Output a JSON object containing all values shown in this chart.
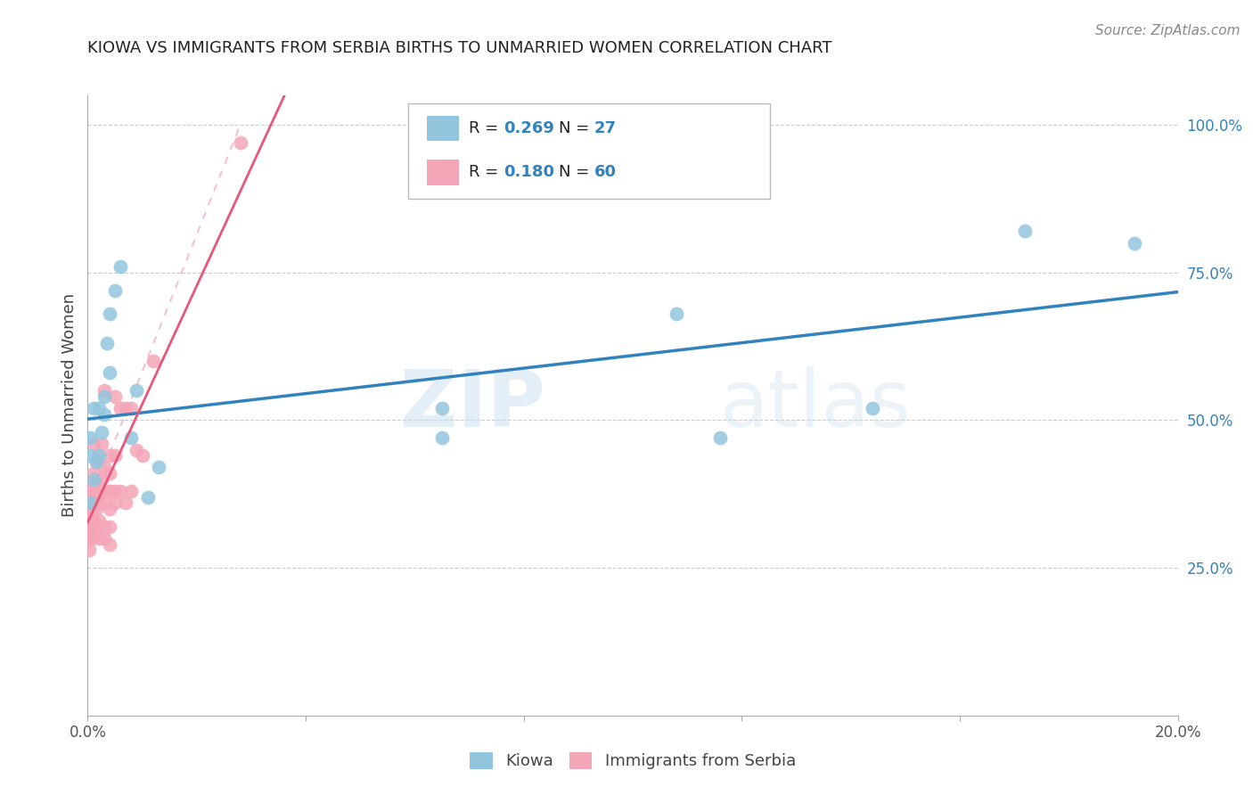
{
  "title": "KIOWA VS IMMIGRANTS FROM SERBIA BIRTHS TO UNMARRIED WOMEN CORRELATION CHART",
  "source": "Source: ZipAtlas.com",
  "ylabel": "Births to Unmarried Women",
  "right_ytick_labels": [
    "100.0%",
    "75.0%",
    "50.0%",
    "25.0%"
  ],
  "right_ytick_values": [
    1.0,
    0.75,
    0.5,
    0.25
  ],
  "xlim": [
    0.0,
    0.2
  ],
  "ylim": [
    0.0,
    1.05
  ],
  "legend_r_kiowa": "0.269",
  "legend_n_kiowa": "27",
  "legend_r_serbia": "0.180",
  "legend_n_serbia": "60",
  "kiowa_color": "#92c5de",
  "serbia_color": "#f4a6b8",
  "trend_kiowa_color": "#3182bd",
  "trend_serbia_color": "#e8567a",
  "trend_serbia_dashed_color": "#f4a6b8",
  "watermark_zip": "ZIP",
  "watermark_atlas": "atlas",
  "kiowa_x": [
    0.0005,
    0.0005,
    0.0005,
    0.001,
    0.001,
    0.0015,
    0.002,
    0.002,
    0.0025,
    0.003,
    0.003,
    0.0035,
    0.004,
    0.004,
    0.005,
    0.006,
    0.008,
    0.009,
    0.011,
    0.013,
    0.065,
    0.065,
    0.108,
    0.116,
    0.144,
    0.172,
    0.192
  ],
  "kiowa_y": [
    0.36,
    0.44,
    0.47,
    0.4,
    0.52,
    0.43,
    0.44,
    0.52,
    0.48,
    0.51,
    0.54,
    0.63,
    0.58,
    0.68,
    0.72,
    0.76,
    0.47,
    0.55,
    0.37,
    0.42,
    0.47,
    0.52,
    0.68,
    0.47,
    0.52,
    0.82,
    0.8
  ],
  "serbia_x": [
    0.0002,
    0.0002,
    0.0002,
    0.0002,
    0.0003,
    0.0003,
    0.0004,
    0.0004,
    0.0005,
    0.0005,
    0.0006,
    0.0006,
    0.0007,
    0.0007,
    0.0008,
    0.0008,
    0.0009,
    0.001,
    0.001,
    0.001,
    0.001,
    0.001,
    0.001,
    0.0015,
    0.0015,
    0.0015,
    0.0015,
    0.002,
    0.002,
    0.002,
    0.002,
    0.002,
    0.0025,
    0.0025,
    0.003,
    0.003,
    0.003,
    0.003,
    0.003,
    0.0035,
    0.004,
    0.004,
    0.004,
    0.004,
    0.004,
    0.004,
    0.005,
    0.005,
    0.005,
    0.005,
    0.006,
    0.006,
    0.007,
    0.007,
    0.008,
    0.008,
    0.009,
    0.01,
    0.012,
    0.028
  ],
  "serbia_y": [
    0.3,
    0.32,
    0.34,
    0.38,
    0.28,
    0.35,
    0.3,
    0.36,
    0.32,
    0.37,
    0.3,
    0.36,
    0.3,
    0.35,
    0.32,
    0.38,
    0.38,
    0.33,
    0.36,
    0.38,
    0.39,
    0.41,
    0.46,
    0.32,
    0.35,
    0.4,
    0.43,
    0.3,
    0.33,
    0.36,
    0.38,
    0.44,
    0.4,
    0.46,
    0.3,
    0.32,
    0.36,
    0.42,
    0.55,
    0.38,
    0.29,
    0.32,
    0.35,
    0.38,
    0.41,
    0.44,
    0.36,
    0.38,
    0.44,
    0.54,
    0.38,
    0.52,
    0.36,
    0.52,
    0.38,
    0.52,
    0.45,
    0.44,
    0.6,
    0.97
  ],
  "grid_yticks": [
    0.25,
    0.5,
    0.75,
    1.0
  ],
  "background_color": "#ffffff"
}
